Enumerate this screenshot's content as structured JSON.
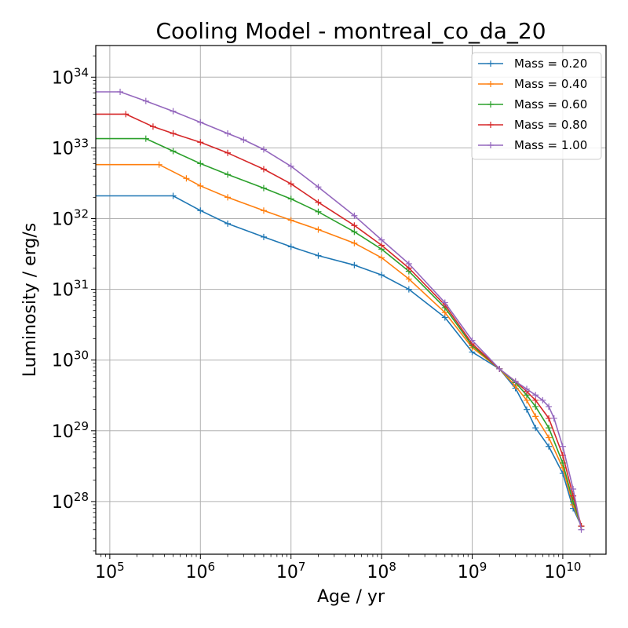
{
  "chart_data": {
    "type": "line",
    "title": "Cooling Model - montreal_co_da_20",
    "xlabel": "Age / yr",
    "ylabel": "Luminosity / erg/s",
    "xscale": "log",
    "yscale": "log",
    "xlim": [
      70000,
      30000000000
    ],
    "ylim": [
      1.8e+27,
      2.8e+34
    ],
    "grid": true,
    "legend_position": "top-right",
    "xticks": [
      {
        "base": "10",
        "exp": "5",
        "value": 100000
      },
      {
        "base": "10",
        "exp": "6",
        "value": 1000000
      },
      {
        "base": "10",
        "exp": "7",
        "value": 10000000
      },
      {
        "base": "10",
        "exp": "8",
        "value": 100000000
      },
      {
        "base": "10",
        "exp": "9",
        "value": 1000000000
      },
      {
        "base": "10",
        "exp": "10",
        "value": 10000000000
      }
    ],
    "yticks": [
      {
        "base": "10",
        "exp": "28",
        "value": 1e+28
      },
      {
        "base": "10",
        "exp": "29",
        "value": 1e+29
      },
      {
        "base": "10",
        "exp": "30",
        "value": 1e+30
      },
      {
        "base": "10",
        "exp": "31",
        "value": 1e+31
      },
      {
        "base": "10",
        "exp": "32",
        "value": 1e+32
      },
      {
        "base": "10",
        "exp": "33",
        "value": 1e+33
      },
      {
        "base": "10",
        "exp": "34",
        "value": 1e+34
      }
    ],
    "series": [
      {
        "name": "Mass = 0.20",
        "color": "#1f77b4",
        "x": [
          70000,
          500000,
          1000000,
          2000000,
          5000000,
          10000000,
          20000000,
          50000000,
          100000000,
          200000000,
          500000000,
          1000000000,
          2000000000,
          3000000000,
          4000000000,
          5000000000,
          7000000000,
          10000000000,
          13000000000,
          16000000000
        ],
        "y": [
          2.1e+32,
          2.1e+32,
          1.3e+32,
          8.5e+31,
          5.5e+31,
          4e+31,
          3e+31,
          2.2e+31,
          1.6e+31,
          1e+31,
          4e+30,
          1.3e+30,
          7.5e+29,
          4e+29,
          2e+29,
          1.1e+29,
          6e+28,
          2.5e+28,
          8e+27,
          4.5e+27
        ]
      },
      {
        "name": "Mass = 0.40",
        "color": "#ff7f0e",
        "x": [
          70000,
          350000,
          700000,
          1000000,
          2000000,
          5000000,
          10000000,
          20000000,
          50000000,
          100000000,
          200000000,
          500000000,
          1000000000,
          2000000000,
          3000000000,
          4000000000,
          5000000000,
          7000000000,
          10000000000,
          13000000000,
          16000000000
        ],
        "y": [
          5.8e+32,
          5.8e+32,
          3.7e+32,
          2.9e+32,
          2e+32,
          1.3e+32,
          9.5e+31,
          7e+31,
          4.5e+31,
          2.8e+31,
          1.4e+31,
          4.7e+30,
          1.5e+30,
          7.5e+29,
          4.3e+29,
          2.7e+29,
          1.6e+29,
          8e+28,
          3e+28,
          9e+27,
          4.5e+27
        ]
      },
      {
        "name": "Mass = 0.60",
        "color": "#2ca02c",
        "x": [
          70000,
          250000,
          500000,
          1000000,
          2000000,
          5000000,
          10000000,
          20000000,
          50000000,
          100000000,
          200000000,
          500000000,
          1000000000,
          2000000000,
          3000000000,
          4000000000,
          5000000000,
          7000000000,
          10000000000,
          13000000000,
          16000000000
        ],
        "y": [
          1.35e+33,
          1.35e+33,
          9e+32,
          6e+32,
          4.2e+32,
          2.7e+32,
          1.9e+32,
          1.25e+32,
          6.5e+31,
          3.7e+31,
          1.8e+31,
          5.5e+30,
          1.6e+30,
          7.5e+29,
          4.8e+29,
          3.2e+29,
          2.2e+29,
          1.1e+29,
          3.5e+28,
          1e+28,
          4.5e+27
        ]
      },
      {
        "name": "Mass = 0.80",
        "color": "#d62728",
        "x": [
          70000,
          150000,
          300000,
          500000,
          1000000,
          2000000,
          5000000,
          10000000,
          20000000,
          50000000,
          100000000,
          200000000,
          500000000,
          1000000000,
          2000000000,
          3000000000,
          4000000000,
          5000000000,
          7000000000,
          10000000000,
          13000000000,
          16000000000
        ],
        "y": [
          3e+33,
          3e+33,
          2e+33,
          1.6e+33,
          1.2e+33,
          8.5e+32,
          5e+32,
          3.1e+32,
          1.7e+32,
          8e+31,
          4.2e+31,
          2e+31,
          6e+30,
          1.7e+30,
          7.5e+29,
          5e+29,
          3.6e+29,
          2.7e+29,
          1.5e+29,
          4.5e+28,
          1.2e+28,
          4.5e+27
        ]
      },
      {
        "name": "Mass = 1.00",
        "color": "#9467bd",
        "x": [
          70000,
          130000,
          250000,
          500000,
          1000000,
          2000000,
          3000000,
          5000000,
          10000000,
          20000000,
          50000000,
          100000000,
          200000000,
          500000000,
          1000000000,
          2000000000,
          3000000000,
          4000000000,
          5000000000,
          6000000000,
          7000000000,
          8000000000,
          10000000000,
          13000000000,
          16000000000
        ],
        "y": [
          6.2e+33,
          6.2e+33,
          4.6e+33,
          3.3e+33,
          2.3e+33,
          1.6e+33,
          1.3e+33,
          9.5e+32,
          5.5e+32,
          2.8e+32,
          1.1e+32,
          5e+31,
          2.3e+31,
          6.5e+30,
          1.9e+30,
          7.5e+29,
          5e+29,
          3.9e+29,
          3.2e+29,
          2.7e+29,
          2.2e+29,
          1.5e+29,
          6e+28,
          1.5e+28,
          4e+27
        ]
      }
    ]
  }
}
